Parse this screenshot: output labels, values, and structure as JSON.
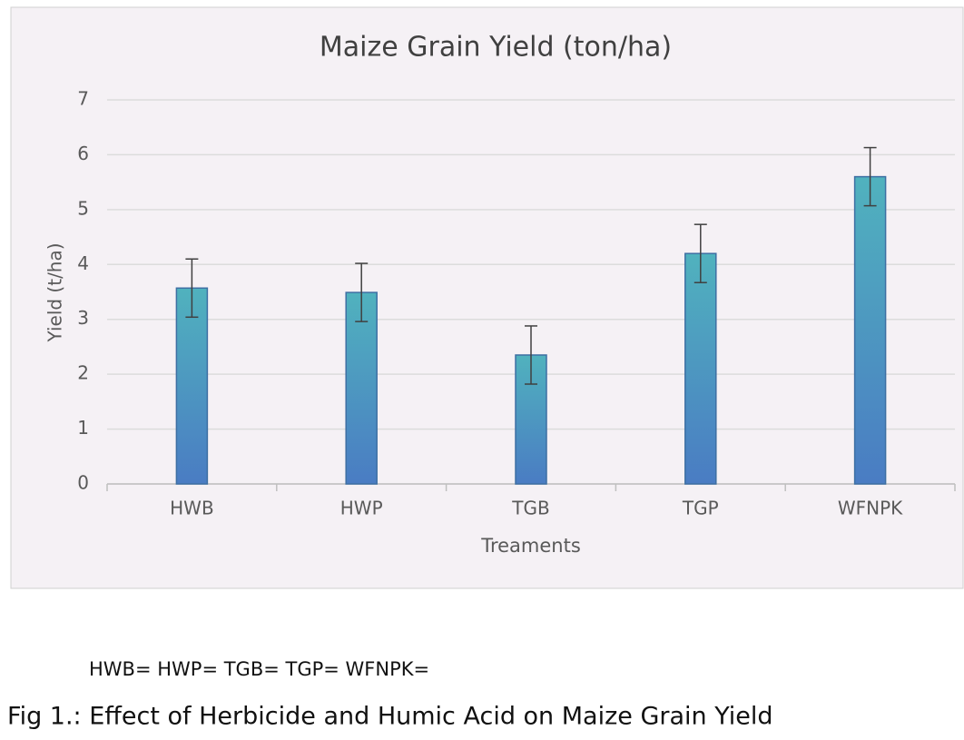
{
  "chart_data": {
    "type": "bar",
    "title": "Maize Grain Yield (ton/ha)",
    "x_label": "Treaments",
    "y_label": "Yield (t/ha)",
    "categories": [
      "HWB",
      "HWP",
      "TGB",
      "TGP",
      "WFNPK"
    ],
    "values": [
      3.57,
      3.49,
      2.35,
      4.2,
      5.6
    ],
    "errors": [
      0.53,
      0.53,
      0.53,
      0.53,
      0.53
    ],
    "gradient": [
      "#50b2be",
      "#4a7cc3"
    ],
    "ylim": [
      0,
      7
    ],
    "yticks": [
      0,
      1,
      2,
      3,
      4,
      5,
      6,
      7
    ],
    "grid": true
  },
  "footnote": "HWB= HWP= TGB= TGP= WFNPK=",
  "caption": "Fig 1.: Effect of Herbicide and Humic Acid on Maize Grain Yield"
}
